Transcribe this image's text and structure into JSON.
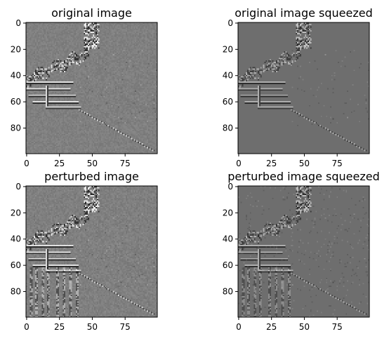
{
  "figure": {
    "panels": [
      {
        "title": "original image",
        "noise": 0,
        "squeezed": false
      },
      {
        "title": "original image squeezed",
        "noise": 0,
        "squeezed": true
      },
      {
        "title": "perturbed image",
        "noise": 1,
        "squeezed": false
      },
      {
        "title": "perturbed image squeezed",
        "noise": 1,
        "squeezed": true
      }
    ]
  },
  "chart_data": [
    {
      "type": "heatmap",
      "title": "original image",
      "colormap": "gray",
      "xlim": [
        0,
        99
      ],
      "ylim": [
        99,
        0
      ],
      "xticks": [
        0,
        25,
        50,
        75
      ],
      "yticks": [
        0,
        20,
        40,
        60,
        80
      ],
      "grid": false
    },
    {
      "type": "heatmap",
      "title": "original image squeezed",
      "colormap": "gray",
      "xlim": [
        0,
        99
      ],
      "ylim": [
        99,
        0
      ],
      "xticks": [
        0,
        25,
        50,
        75
      ],
      "yticks": [
        0,
        20,
        40,
        60,
        80
      ],
      "grid": false
    },
    {
      "type": "heatmap",
      "title": "perturbed image",
      "colormap": "gray",
      "xlim": [
        0,
        99
      ],
      "ylim": [
        99,
        0
      ],
      "xticks": [
        0,
        25,
        50,
        75
      ],
      "yticks": [
        0,
        20,
        40,
        60,
        80
      ],
      "grid": false
    },
    {
      "type": "heatmap",
      "title": "perturbed image squeezed",
      "colormap": "gray",
      "xlim": [
        0,
        99
      ],
      "ylim": [
        99,
        0
      ],
      "xticks": [
        0,
        25,
        50,
        75
      ],
      "yticks": [
        0,
        20,
        40,
        60,
        80
      ],
      "grid": false
    }
  ]
}
